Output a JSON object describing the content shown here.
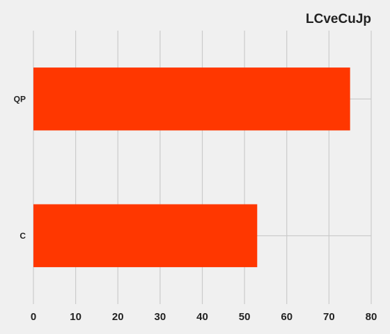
{
  "chart_data": {
    "type": "bar",
    "orientation": "horizontal",
    "title": "LCveCuJp",
    "categories": [
      "QP",
      "C"
    ],
    "values": [
      75,
      53
    ],
    "xlim": [
      0,
      80
    ],
    "xticks": [
      0,
      10,
      20,
      30,
      40,
      50,
      60,
      70,
      80
    ],
    "xlabel": "",
    "ylabel": "",
    "grid": true,
    "bar_color": "#ff3700",
    "background": "#f0f0f0",
    "grid_color": "#cbcbcb"
  }
}
